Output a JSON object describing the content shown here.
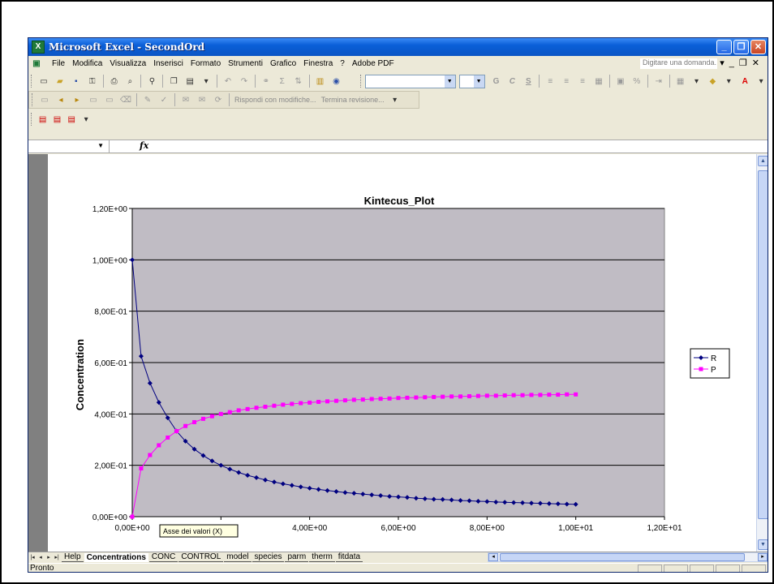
{
  "window": {
    "title": "Microsoft Excel - SecondOrd"
  },
  "menu": {
    "items": [
      "File",
      "Modifica",
      "Visualizza",
      "Inserisci",
      "Formato",
      "Strumenti",
      "Grafico",
      "Finestra",
      "?",
      "Adobe PDF"
    ],
    "help_placeholder": "Digitare una domanda."
  },
  "review_toolbar": {
    "reply_label": "Rispondi con modifiche...",
    "end_label": "Termina revisione..."
  },
  "formatting": {
    "bold": "G",
    "italic": "C",
    "underline": "S"
  },
  "formula_bar": {
    "fx_label": "fx"
  },
  "sheet_tabs": [
    "Help",
    "Concentrations",
    "CONC",
    "CONTROL",
    "model",
    "species",
    "parm",
    "therm",
    "fitdata"
  ],
  "active_tab": "Concentrations",
  "status": {
    "text": "Pronto"
  },
  "tooltip": {
    "text": "Asse dei valori (X)"
  },
  "colors": {
    "plot_bg": "#c0bcc4",
    "series_r": "#000080",
    "series_p": "#ff00ff"
  },
  "chart_data": {
    "type": "scatter",
    "title": "Kintecus_Plot",
    "ylabel": "Concentration",
    "xlabel": "",
    "xlim": [
      0,
      12
    ],
    "ylim": [
      0,
      1.2
    ],
    "x_ticks": [
      "0,00E+00",
      "2,00E+00",
      "4,00E+00",
      "6,00E+00",
      "8,00E+00",
      "1,00E+01",
      "1,20E+01"
    ],
    "y_ticks": [
      "0,00E+00",
      "2,00E-01",
      "4,00E-01",
      "6,00E-01",
      "8,00E-01",
      "1,00E+00",
      "1,20E+00"
    ],
    "grid": "horizontal",
    "legend_position": "right",
    "series": [
      {
        "name": "R",
        "marker": "diamond",
        "x": [
          0,
          0.2,
          0.4,
          0.6,
          0.8,
          1.0,
          1.2,
          1.4,
          1.6,
          1.8,
          2.0,
          2.2,
          2.4,
          2.6,
          2.8,
          3.0,
          3.2,
          3.4,
          3.6,
          3.8,
          4.0,
          4.2,
          4.4,
          4.6,
          4.8,
          5.0,
          5.2,
          5.4,
          5.6,
          5.8,
          6.0,
          6.2,
          6.4,
          6.6,
          6.8,
          7.0,
          7.2,
          7.4,
          7.6,
          7.8,
          8.0,
          8.2,
          8.4,
          8.6,
          8.8,
          9.0,
          9.2,
          9.4,
          9.6,
          9.8,
          10.0
        ],
        "y": [
          1.0,
          0.625,
          0.52,
          0.445,
          0.385,
          0.333,
          0.294,
          0.263,
          0.238,
          0.217,
          0.2,
          0.185,
          0.172,
          0.161,
          0.152,
          0.143,
          0.135,
          0.128,
          0.122,
          0.116,
          0.111,
          0.106,
          0.102,
          0.098,
          0.094,
          0.091,
          0.088,
          0.085,
          0.082,
          0.079,
          0.077,
          0.075,
          0.072,
          0.07,
          0.068,
          0.067,
          0.065,
          0.063,
          0.062,
          0.06,
          0.059,
          0.057,
          0.056,
          0.055,
          0.054,
          0.053,
          0.052,
          0.051,
          0.05,
          0.049,
          0.048
        ]
      },
      {
        "name": "P",
        "marker": "square",
        "x": [
          0,
          0.2,
          0.4,
          0.6,
          0.8,
          1.0,
          1.2,
          1.4,
          1.6,
          1.8,
          2.0,
          2.2,
          2.4,
          2.6,
          2.8,
          3.0,
          3.2,
          3.4,
          3.6,
          3.8,
          4.0,
          4.2,
          4.4,
          4.6,
          4.8,
          5.0,
          5.2,
          5.4,
          5.6,
          5.8,
          6.0,
          6.2,
          6.4,
          6.6,
          6.8,
          7.0,
          7.2,
          7.4,
          7.6,
          7.8,
          8.0,
          8.2,
          8.4,
          8.6,
          8.8,
          9.0,
          9.2,
          9.4,
          9.6,
          9.8,
          10.0
        ],
        "y": [
          0,
          0.188,
          0.24,
          0.278,
          0.308,
          0.333,
          0.353,
          0.368,
          0.381,
          0.391,
          0.4,
          0.407,
          0.414,
          0.419,
          0.424,
          0.428,
          0.432,
          0.436,
          0.439,
          0.442,
          0.444,
          0.447,
          0.449,
          0.451,
          0.453,
          0.455,
          0.456,
          0.458,
          0.459,
          0.46,
          0.462,
          0.463,
          0.464,
          0.465,
          0.466,
          0.467,
          0.468,
          0.468,
          0.469,
          0.47,
          0.471,
          0.471,
          0.472,
          0.473,
          0.473,
          0.474,
          0.474,
          0.475,
          0.475,
          0.476,
          0.476
        ]
      }
    ]
  }
}
